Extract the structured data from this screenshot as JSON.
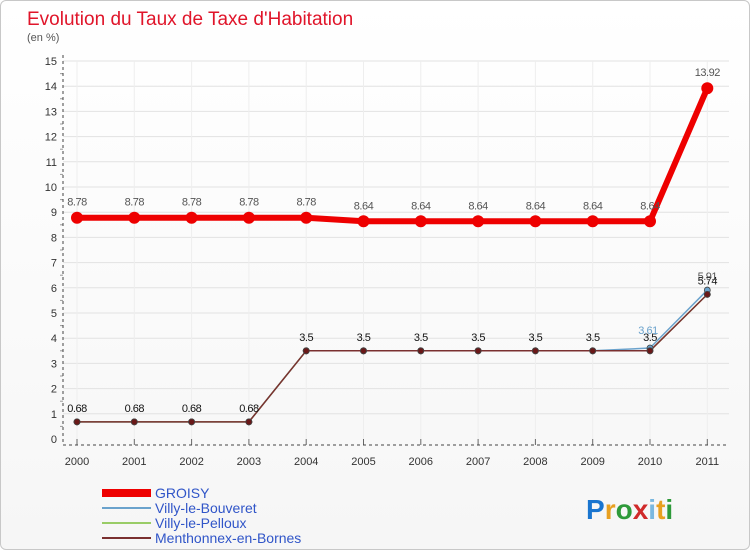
{
  "chart_data": {
    "type": "line",
    "title": "Evolution du Taux de Taxe d'Habitation",
    "subtitle": "(en %)",
    "xlabel": "",
    "ylabel": "",
    "categories": [
      "2000",
      "2001",
      "2002",
      "2003",
      "2004",
      "2005",
      "2006",
      "2007",
      "2008",
      "2009",
      "2010",
      "2011"
    ],
    "ylim": [
      0,
      15
    ],
    "yticks": [
      "0",
      "1",
      "2",
      "3",
      "4",
      "5",
      "6",
      "7",
      "8",
      "9",
      "10",
      "11",
      "12",
      "13",
      "14",
      "15"
    ],
    "grid": true,
    "series": [
      {
        "name": "GROISY",
        "color": "#ee0000",
        "values": [
          8.78,
          8.78,
          8.78,
          8.78,
          8.78,
          8.64,
          8.64,
          8.64,
          8.64,
          8.64,
          8.64,
          13.92
        ],
        "labels": [
          "8.78",
          "8.78",
          "8.78",
          "8.78",
          "8.78",
          "8.64",
          "8.64",
          "8.64",
          "8.64",
          "8.64",
          "8.64",
          "13.92"
        ]
      },
      {
        "name": "Villy-le-Bouveret",
        "color": "#6aa2cc",
        "values": [
          0.68,
          0.68,
          0.68,
          0.68,
          3.5,
          3.5,
          3.5,
          3.5,
          3.5,
          3.5,
          3.61,
          5.91
        ],
        "labels": [
          "0.68",
          "0.68",
          "0.68",
          "0.68",
          "3.5",
          "3.5",
          "3.5",
          "3.5",
          "3.5",
          "3.5",
          "3.61",
          "5.91"
        ]
      },
      {
        "name": "Villy-le-Pelloux",
        "color": "#99cc66",
        "values": [
          0.68,
          0.68,
          0.68,
          0.68,
          3.5,
          3.5,
          3.5,
          3.5,
          3.5,
          3.5,
          3.5,
          5.74
        ],
        "labels": [
          "0.68",
          "0.68",
          "0.68",
          "0.68",
          "3.5",
          "3.5",
          "3.5",
          "3.5",
          "3.5",
          "3.5",
          "3.5",
          "5.74"
        ]
      },
      {
        "name": "Menthonnex-en-Bornes",
        "color": "#7a3030",
        "values": [
          0.68,
          0.68,
          0.68,
          0.68,
          3.5,
          3.5,
          3.5,
          3.5,
          3.5,
          3.5,
          3.5,
          5.74
        ],
        "labels": [
          "0.68",
          "0.68",
          "0.68",
          "0.68",
          "3.5",
          "3.5",
          "3.5",
          "3.5",
          "3.5",
          "3.5",
          "3.5",
          "5.74"
        ]
      }
    ]
  },
  "logo": {
    "letters": [
      "P",
      "r",
      "o",
      "x",
      "i",
      "t",
      "i"
    ],
    "colors": [
      "#1a75cf",
      "#e8a020",
      "#2e9a3a",
      "#d02a2a",
      "#7ab8e0",
      "#e8a020",
      "#2e9a3a"
    ]
  }
}
